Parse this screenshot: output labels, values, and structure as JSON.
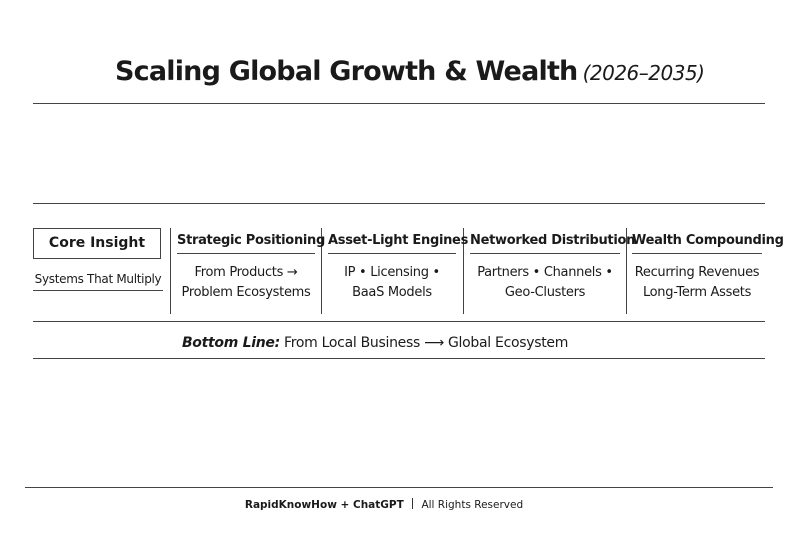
{
  "header": {
    "title": "Scaling Global Growth & Wealth",
    "subtitle": "(2026–2035)"
  },
  "core": {
    "title": "Core Insight",
    "text": "Systems That Multiply"
  },
  "columns": [
    {
      "title": "Strategic Positioning",
      "lines": [
        "From Products →",
        "Problem Ecosystems"
      ]
    },
    {
      "title": "Asset-Light Engines",
      "lines": [
        "IP • Licensing •",
        "BaaS Models"
      ]
    },
    {
      "title": "Networked Distribution",
      "lines": [
        "Partners • Channels •",
        "Geo-Clusters"
      ]
    },
    {
      "title": "Wealth Compounding",
      "lines": [
        "Recurring Revenues",
        "Long-Term Assets"
      ]
    }
  ],
  "bottom_line": {
    "label": "Bottom Line:",
    "text": "From Local Business ⟶ Global Ecosystem"
  },
  "footer": {
    "brand": "RapidKnowHow + ChatGPT",
    "rights": "All Rights Reserved"
  }
}
